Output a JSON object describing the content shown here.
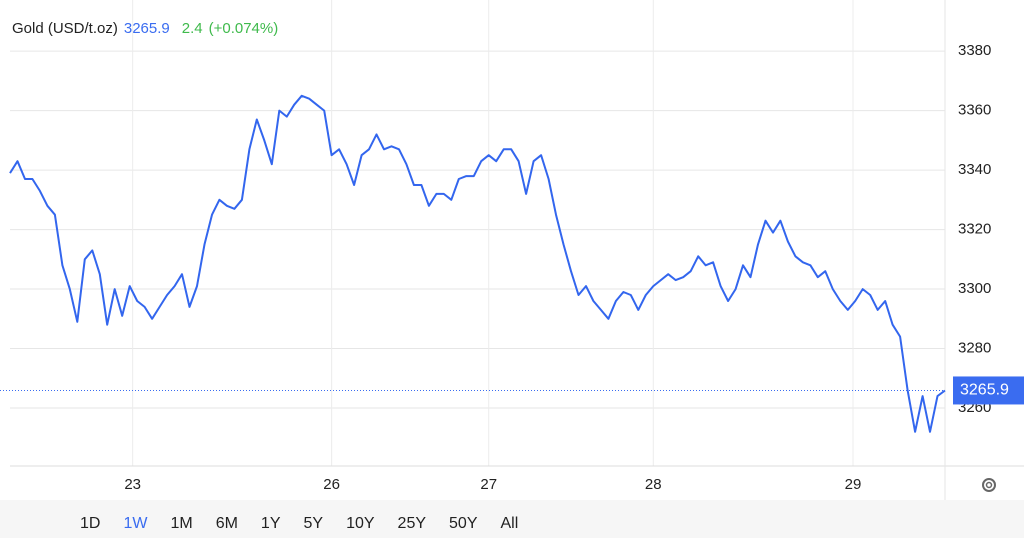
{
  "chart_data": {
    "type": "line",
    "title": "Gold (USD/t.oz)",
    "last_price": 3265.9,
    "change": 2.4,
    "change_percent": {
      "value": 0.074,
      "label": "(+0.074%)"
    },
    "price_color": "#3a6cf0",
    "change_color": "#3fba4c",
    "series": [
      {
        "name": "Gold",
        "color": "#3366ee",
        "values": [
          3339,
          3343,
          3337,
          3337,
          3333,
          3328,
          3325,
          3308,
          3300,
          3289,
          3310,
          3313,
          3305,
          3288,
          3300,
          3291,
          3301,
          3296,
          3294,
          3290,
          3294,
          3298,
          3301,
          3305,
          3294,
          3301,
          3315,
          3325,
          3330,
          3328,
          3327,
          3330,
          3347,
          3357,
          3350,
          3342,
          3360,
          3358,
          3362,
          3365,
          3364,
          3362,
          3360,
          3345,
          3347,
          3342,
          3335,
          3345,
          3347,
          3352,
          3347,
          3348,
          3347,
          3342,
          3335,
          3335,
          3328,
          3332,
          3332,
          3330,
          3337,
          3338,
          3338,
          3343,
          3345,
          3343,
          3347,
          3347,
          3343,
          3332,
          3343,
          3345,
          3337,
          3325,
          3315,
          3306,
          3298,
          3301,
          3296,
          3293,
          3290,
          3296,
          3299,
          3298,
          3293,
          3298,
          3301,
          3303,
          3305,
          3303,
          3304,
          3306,
          3311,
          3308,
          3309,
          3301,
          3296,
          3300,
          3308,
          3304,
          3315,
          3323,
          3319,
          3323,
          3316,
          3311,
          3309,
          3308,
          3304,
          3306,
          3300,
          3296,
          3293,
          3296,
          3300,
          3298,
          3293,
          3296,
          3288,
          3284,
          3266,
          3252,
          3264,
          3252,
          3264,
          3265.9
        ]
      }
    ],
    "xlim": [
      0,
      125
    ],
    "xticks": [
      {
        "value": 16.4,
        "label": "23"
      },
      {
        "value": 43,
        "label": "26"
      },
      {
        "value": 64,
        "label": "27"
      },
      {
        "value": 86,
        "label": "28"
      },
      {
        "value": 112.7,
        "label": "29"
      }
    ],
    "ylim": [
      3240.5,
      3397.2
    ],
    "yticks": [
      3260,
      3280,
      3300,
      3320,
      3340,
      3360,
      3380
    ],
    "grid": true,
    "range_buttons": [
      "1D",
      "1W",
      "1M",
      "6M",
      "1Y",
      "5Y",
      "10Y",
      "25Y",
      "50Y",
      "All"
    ],
    "active_range": "1W"
  }
}
